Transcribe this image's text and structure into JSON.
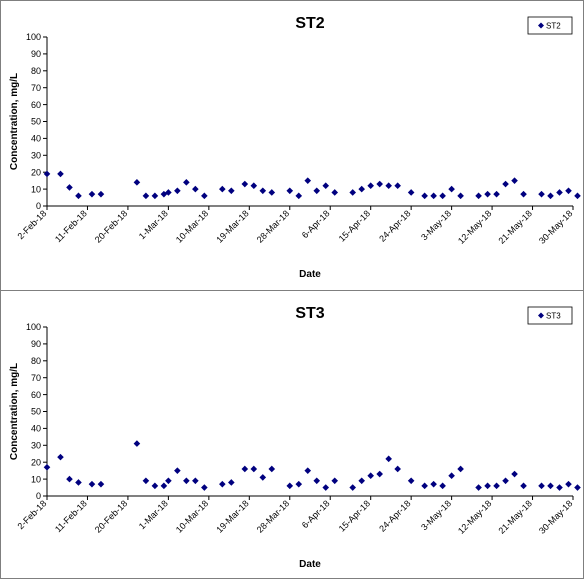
{
  "chart_data": [
    {
      "type": "scatter",
      "title": "ST2",
      "xlabel": "Date",
      "ylabel": "Concentration, mg/L",
      "ylim": [
        0,
        100
      ],
      "yticks": [
        0,
        10,
        20,
        30,
        40,
        50,
        60,
        70,
        80,
        90,
        100
      ],
      "xlim": [
        "2018-02-02",
        "2018-05-30"
      ],
      "xtick_labels": [
        "2-Feb-18",
        "11-Feb-18",
        "20-Feb-18",
        "1-Mar-18",
        "10-Mar-18",
        "19-Mar-18",
        "28-Mar-18",
        "6-Apr-18",
        "15-Apr-18",
        "24-Apr-18",
        "3-May-18",
        "12-May-18",
        "21-May-18",
        "30-May-18"
      ],
      "legend": "top-right",
      "grid": false,
      "marker_color": "#00007f",
      "series": [
        {
          "name": "ST2",
          "x": [
            "2018-02-02",
            "2018-02-05",
            "2018-02-07",
            "2018-02-09",
            "2018-02-12",
            "2018-02-14",
            "2018-02-22",
            "2018-02-24",
            "2018-02-26",
            "2018-02-28",
            "2018-03-01",
            "2018-03-03",
            "2018-03-05",
            "2018-03-07",
            "2018-03-09",
            "2018-03-13",
            "2018-03-15",
            "2018-03-18",
            "2018-03-20",
            "2018-03-22",
            "2018-03-24",
            "2018-03-28",
            "2018-03-30",
            "2018-04-01",
            "2018-04-03",
            "2018-04-05",
            "2018-04-07",
            "2018-04-11",
            "2018-04-13",
            "2018-04-15",
            "2018-04-17",
            "2018-04-19",
            "2018-04-21",
            "2018-04-24",
            "2018-04-27",
            "2018-04-29",
            "2018-05-01",
            "2018-05-03",
            "2018-05-05",
            "2018-05-09",
            "2018-05-11",
            "2018-05-13",
            "2018-05-15",
            "2018-05-17",
            "2018-05-19",
            "2018-05-23",
            "2018-05-25",
            "2018-05-27",
            "2018-05-29",
            "2018-05-31"
          ],
          "y": [
            19,
            19,
            11,
            6,
            7,
            7,
            14,
            6,
            6,
            7,
            8,
            9,
            14,
            10,
            6,
            10,
            9,
            13,
            12,
            9,
            8,
            9,
            6,
            15,
            9,
            12,
            8,
            8,
            10,
            12,
            13,
            12,
            12,
            8,
            6,
            6,
            6,
            10,
            6,
            6,
            7,
            7,
            13,
            15,
            7,
            7,
            6,
            8,
            9,
            6
          ]
        }
      ]
    },
    {
      "type": "scatter",
      "title": "ST3",
      "xlabel": "Date",
      "ylabel": "Concentration, mg/L",
      "ylim": [
        0,
        100
      ],
      "yticks": [
        0,
        10,
        20,
        30,
        40,
        50,
        60,
        70,
        80,
        90,
        100
      ],
      "xlim": [
        "2018-02-02",
        "2018-05-30"
      ],
      "xtick_labels": [
        "2-Feb-18",
        "11-Feb-18",
        "20-Feb-18",
        "1-Mar-18",
        "10-Mar-18",
        "19-Mar-18",
        "28-Mar-18",
        "6-Apr-18",
        "15-Apr-18",
        "24-Apr-18",
        "3-May-18",
        "12-May-18",
        "21-May-18",
        "30-May-18"
      ],
      "legend": "top-right",
      "grid": false,
      "marker_color": "#00007f",
      "series": [
        {
          "name": "ST3",
          "x": [
            "2018-02-02",
            "2018-02-05",
            "2018-02-07",
            "2018-02-09",
            "2018-02-12",
            "2018-02-14",
            "2018-02-22",
            "2018-02-24",
            "2018-02-26",
            "2018-02-28",
            "2018-03-01",
            "2018-03-03",
            "2018-03-05",
            "2018-03-07",
            "2018-03-09",
            "2018-03-13",
            "2018-03-15",
            "2018-03-18",
            "2018-03-20",
            "2018-03-22",
            "2018-03-24",
            "2018-03-28",
            "2018-03-30",
            "2018-04-01",
            "2018-04-03",
            "2018-04-05",
            "2018-04-07",
            "2018-04-11",
            "2018-04-13",
            "2018-04-15",
            "2018-04-17",
            "2018-04-19",
            "2018-04-21",
            "2018-04-24",
            "2018-04-27",
            "2018-04-29",
            "2018-05-01",
            "2018-05-03",
            "2018-05-05",
            "2018-05-09",
            "2018-05-11",
            "2018-05-13",
            "2018-05-15",
            "2018-05-17",
            "2018-05-19",
            "2018-05-23",
            "2018-05-25",
            "2018-05-27",
            "2018-05-29",
            "2018-05-31"
          ],
          "y": [
            17,
            23,
            10,
            8,
            7,
            7,
            31,
            9,
            6,
            6,
            9,
            15,
            9,
            9,
            5,
            7,
            8,
            16,
            16,
            11,
            16,
            6,
            7,
            15,
            9,
            5,
            9,
            5,
            9,
            12,
            13,
            22,
            16,
            9,
            6,
            7,
            6,
            12,
            16,
            5,
            6,
            6,
            9,
            13,
            6,
            6,
            6,
            5,
            7,
            5
          ]
        }
      ]
    }
  ]
}
